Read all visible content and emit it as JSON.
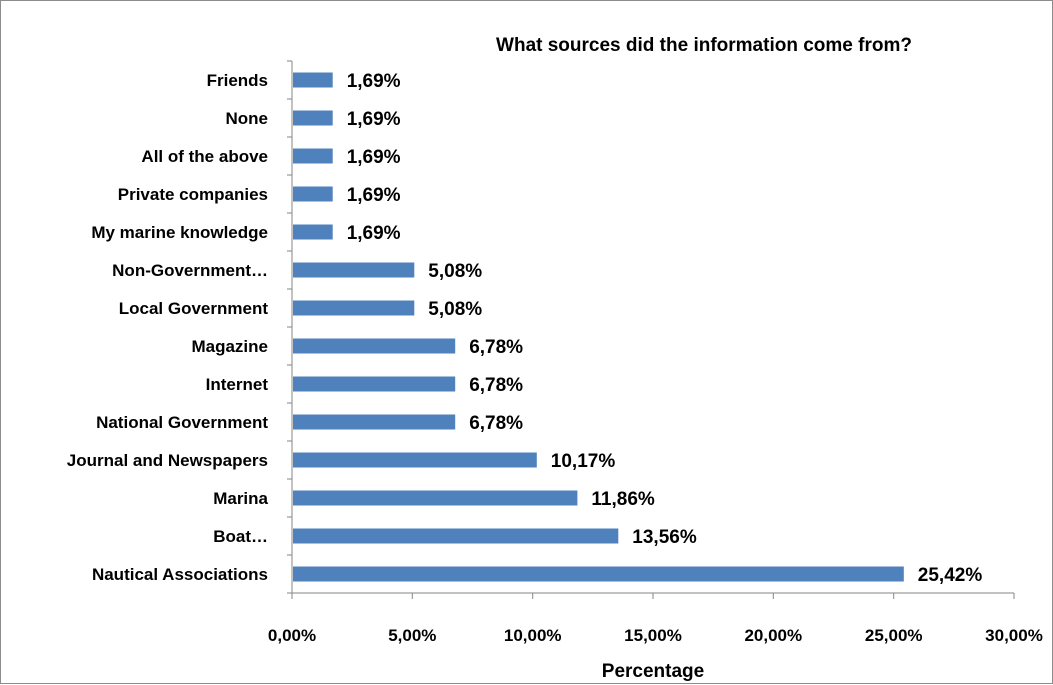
{
  "chart_data": {
    "type": "bar",
    "orientation": "horizontal",
    "title": "What sources did the information come from?",
    "xlabel": "Percentage",
    "ylabel": "",
    "xlim": [
      0,
      30
    ],
    "x_ticks": [
      "0,00%",
      "5,00%",
      "10,00%",
      "15,00%",
      "20,00%",
      "25,00%",
      "30,00%"
    ],
    "categories": [
      "Friends",
      "None",
      "All of the above",
      "Private companies",
      "My marine knowledge",
      "Non-Government…",
      "Local Government",
      "Magazine",
      "Internet",
      "National Government",
      "Journal and Newspapers",
      "Marina",
      "Boat…",
      "Nautical Associations"
    ],
    "values": [
      1.69,
      1.69,
      1.69,
      1.69,
      1.69,
      5.08,
      5.08,
      6.78,
      6.78,
      6.78,
      10.17,
      11.86,
      13.56,
      25.42
    ],
    "data_labels": [
      "1,69%",
      "1,69%",
      "1,69%",
      "1,69%",
      "1,69%",
      "5,08%",
      "5,08%",
      "6,78%",
      "6,78%",
      "6,78%",
      "10,17%",
      "11,86%",
      "13,56%",
      "25,42%"
    ],
    "bar_color": "#4f81bd",
    "grid": false,
    "legend": "none"
  }
}
